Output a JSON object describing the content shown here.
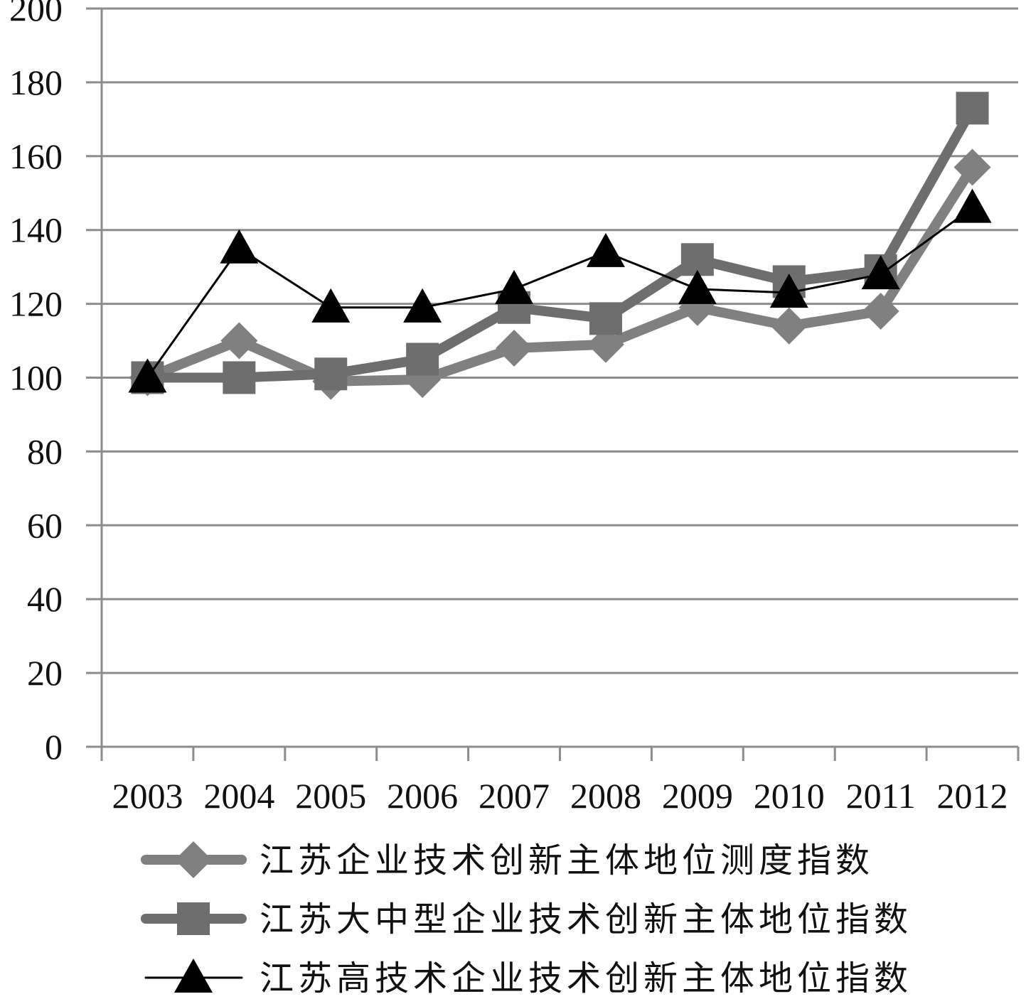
{
  "chart_data": {
    "type": "line",
    "title": "",
    "xlabel": "",
    "ylabel": "",
    "categories": [
      "2003",
      "2004",
      "2005",
      "2006",
      "2007",
      "2008",
      "2009",
      "2010",
      "2011",
      "2012"
    ],
    "ylim": [
      0,
      200
    ],
    "yticks": [
      "0",
      "20",
      "40",
      "60",
      "80",
      "100",
      "120",
      "140",
      "160",
      "180",
      "200"
    ],
    "grid": "horizontal",
    "legend_position": "bottom",
    "series": [
      {
        "name": "江苏企业技术创新主体地位测度指数",
        "marker": "diamond",
        "color": "#808080",
        "values": [
          100,
          110,
          99,
          99.5,
          108,
          109,
          119,
          114,
          118,
          157
        ]
      },
      {
        "name": "江苏大中型企业技术创新主体地位指数",
        "marker": "square",
        "color": "#6e6e6e",
        "values": [
          100,
          100,
          101,
          105,
          119,
          116,
          132,
          126,
          129,
          173
        ]
      },
      {
        "name": "江苏高技术企业技术创新主体地位指数",
        "marker": "triangle",
        "color": "#000000",
        "values": [
          100,
          135,
          119,
          119,
          124,
          134,
          124,
          123,
          128,
          146
        ]
      }
    ]
  }
}
